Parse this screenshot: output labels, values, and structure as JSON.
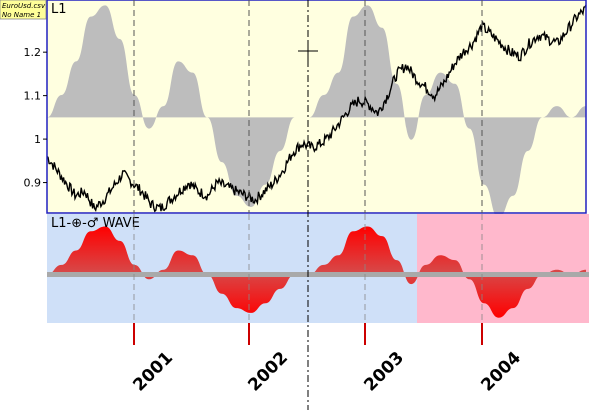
{
  "file_tag": {
    "line1": "EuroUsd.csv",
    "line2": "No Name 1"
  },
  "top_panel": {
    "title": "L1",
    "y_ticks": [
      "1.2",
      "1.1",
      "1",
      "0.9"
    ],
    "y_tick_values": [
      1.2,
      1.1,
      1.0,
      0.9
    ],
    "ylim": [
      0.83,
      1.32
    ],
    "baseline": 1.05,
    "colors": {
      "background": "#ffffe0",
      "border": "#2020c0",
      "wave_fill": "#bdbdbd",
      "price_line": "#000000"
    }
  },
  "bottom_panel": {
    "title": "L1-⊕-♂ WAVE",
    "colors": {
      "background_left": "#cfe0f8",
      "background_right": "#ffb8cc",
      "wave_peak": "#ff0000",
      "wave_base": "#a9a9a9"
    }
  },
  "x_axis": {
    "labels": [
      "2001",
      "2002",
      "2003",
      "2004"
    ]
  },
  "cursor": {
    "icon": "crosshair-icon"
  },
  "chart_data": {
    "type": "line",
    "title": "L1",
    "x_start": "2000",
    "x_end": "2005",
    "series": [
      {
        "values": [
          0.96,
          0.93,
          0.9,
          0.87,
          0.88,
          0.84,
          0.86,
          0.89,
          0.92,
          0.9,
          0.88,
          0.85,
          0.84,
          0.86,
          0.88,
          0.9,
          0.88,
          0.87,
          0.9,
          0.89,
          0.88,
          0.87,
          0.86,
          0.88,
          0.9,
          0.93,
          0.97,
          0.99,
          0.98,
          0.99,
          1.01,
          1.04,
          1.07,
          1.09,
          1.08,
          1.06,
          1.1,
          1.15,
          1.17,
          1.14,
          1.12,
          1.1,
          1.13,
          1.17,
          1.2,
          1.22,
          1.26,
          1.24,
          1.22,
          1.2,
          1.19,
          1.22,
          1.24,
          1.23,
          1.22,
          1.25,
          1.28,
          1.3
        ]
      }
    ],
    "wave_values": [
      0.0,
      0.2,
      0.5,
      0.9,
      1.0,
      0.7,
      0.2,
      -0.1,
      0.1,
      0.5,
      0.4,
      0.0,
      -0.4,
      -0.7,
      -0.8,
      -0.6,
      -0.3,
      0.0,
      0.0,
      0.2,
      0.4,
      0.9,
      1.0,
      0.8,
      0.3,
      -0.2,
      0.2,
      0.4,
      0.3,
      -0.1,
      -0.6,
      -0.9,
      -0.7,
      -0.3,
      0.0,
      0.1,
      0.0,
      0.1
    ]
  }
}
